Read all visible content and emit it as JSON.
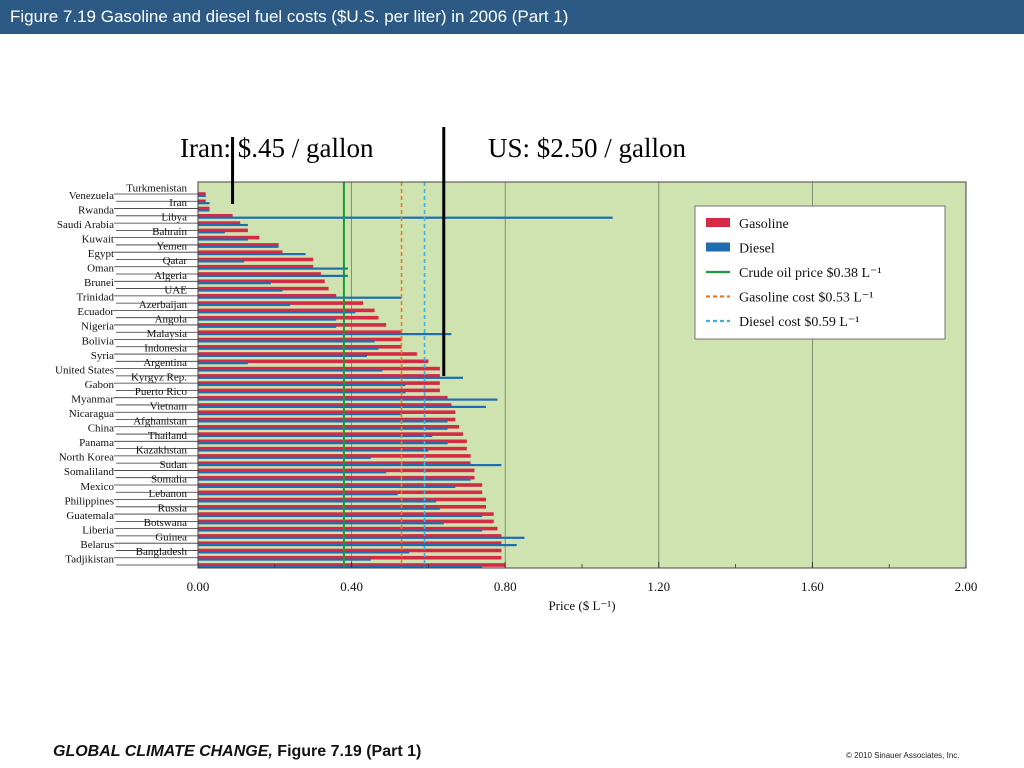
{
  "header": {
    "title": "Figure 7.19  Gasoline and diesel fuel costs ($U.S. per liter) in 2006 (Part 1)"
  },
  "annotations": [
    {
      "text": "Iran: $.45 / gallon",
      "pointer_x": 0.09
    },
    {
      "text": "US: $2.50 / gallon",
      "pointer_x": 0.64
    }
  ],
  "footer": {
    "book_title": "GLOBAL CLIMATE CHANGE,",
    "figure_ref": " Figure 7.19 (Part 1)",
    "copyright": "© 2010 Sinauer Associates, Inc."
  },
  "colors": {
    "title_bar": "#2c5a84",
    "plot_bg": "#cfe3b0",
    "gasoline": "#d42a46",
    "diesel": "#1f6db0",
    "crude": "#1a9a3a",
    "gas_cost": "#f07a1a",
    "diesel_cost": "#3fb0e0"
  },
  "chart_data": {
    "type": "bar",
    "orientation": "horizontal",
    "xlabel": "Price ($ L⁻¹)",
    "xlim": [
      0,
      2.0
    ],
    "xticks": [
      "0.00",
      "0.40",
      "0.80",
      "1.20",
      "1.60",
      "2.00"
    ],
    "grid": true,
    "legend_position": "top-right",
    "legend": [
      {
        "label": "Gasoline",
        "kind": "bar",
        "color_key": "gasoline"
      },
      {
        "label": "Diesel",
        "kind": "bar",
        "color_key": "diesel"
      },
      {
        "label": "Crude oil price $0.38 L⁻¹",
        "kind": "solid",
        "color_key": "crude"
      },
      {
        "label": "Gasoline cost $0.53 L⁻¹",
        "kind": "dashed",
        "color_key": "gas_cost"
      },
      {
        "label": "Diesel cost $0.59 L⁻¹",
        "kind": "dashed",
        "color_key": "diesel_cost"
      }
    ],
    "reference_lines": [
      {
        "value": 0.38,
        "color_key": "crude",
        "style": "solid"
      },
      {
        "value": 0.53,
        "color_key": "gas_cost",
        "style": "dashed"
      },
      {
        "value": 0.59,
        "color_key": "diesel_cost",
        "style": "dashed"
      }
    ],
    "categories": [
      "Turkmenistan",
      "Venezuela",
      "Iran",
      "Rwanda",
      "Libya",
      "Saudi Arabia",
      "Bahrain",
      "Kuwait",
      "Yemen",
      "Egypt",
      "Qatar",
      "Oman",
      "Algeria",
      "Brunei",
      "UAE",
      "Trinidad",
      "Azerbaijan",
      "Ecuador",
      "Angola",
      "Nigeria",
      "Malaysia",
      "Bolivia",
      "Indonesia",
      "Syria",
      "Argentina",
      "United States",
      "Kyrgyz Rep.",
      "Gabon",
      "Puerto Rico",
      "Myanmar",
      "Vietnam",
      "Nicaragua",
      "Afghanistan",
      "China",
      "Thailand",
      "Panama",
      "Kazakhstan",
      "North Korea",
      "Sudan",
      "Somaliland",
      "Somalia",
      "Mexico",
      "Lebanon",
      "Philippines",
      "Russia",
      "Guatemala",
      "Botswana",
      "Liberia",
      "Guinea",
      "Belarus",
      "Bangladesh",
      "Tadjikistan"
    ],
    "series": [
      {
        "name": "Gasoline",
        "color_key": "gasoline",
        "values": [
          0.02,
          0.02,
          0.03,
          0.09,
          0.11,
          0.13,
          0.16,
          0.21,
          0.22,
          0.3,
          0.3,
          0.32,
          0.33,
          0.34,
          0.36,
          0.43,
          0.46,
          0.47,
          0.49,
          0.53,
          0.53,
          0.53,
          0.57,
          0.6,
          0.63,
          0.63,
          0.63,
          0.63,
          0.65,
          0.66,
          0.67,
          0.67,
          0.68,
          0.69,
          0.7,
          0.7,
          0.71,
          0.71,
          0.72,
          0.72,
          0.74,
          0.74,
          0.75,
          0.75,
          0.77,
          0.77,
          0.78,
          0.79,
          0.79,
          0.79,
          0.79,
          0.8
        ]
      },
      {
        "name": "Diesel",
        "color_key": "diesel",
        "values": [
          0.02,
          0.03,
          0.03,
          1.08,
          0.13,
          0.07,
          0.13,
          0.21,
          0.28,
          0.12,
          0.39,
          0.39,
          0.19,
          0.22,
          0.53,
          0.24,
          0.41,
          0.36,
          0.36,
          0.66,
          0.46,
          0.47,
          0.44,
          0.13,
          0.48,
          0.69,
          0.54,
          0.54,
          0.78,
          0.75,
          0.53,
          0.65,
          0.65,
          0.61,
          0.65,
          0.6,
          0.45,
          0.79,
          0.49,
          0.71,
          0.67,
          0.52,
          0.62,
          0.63,
          0.74,
          0.64,
          0.74,
          0.85,
          0.83,
          0.55,
          0.45,
          0.74
        ]
      }
    ]
  }
}
